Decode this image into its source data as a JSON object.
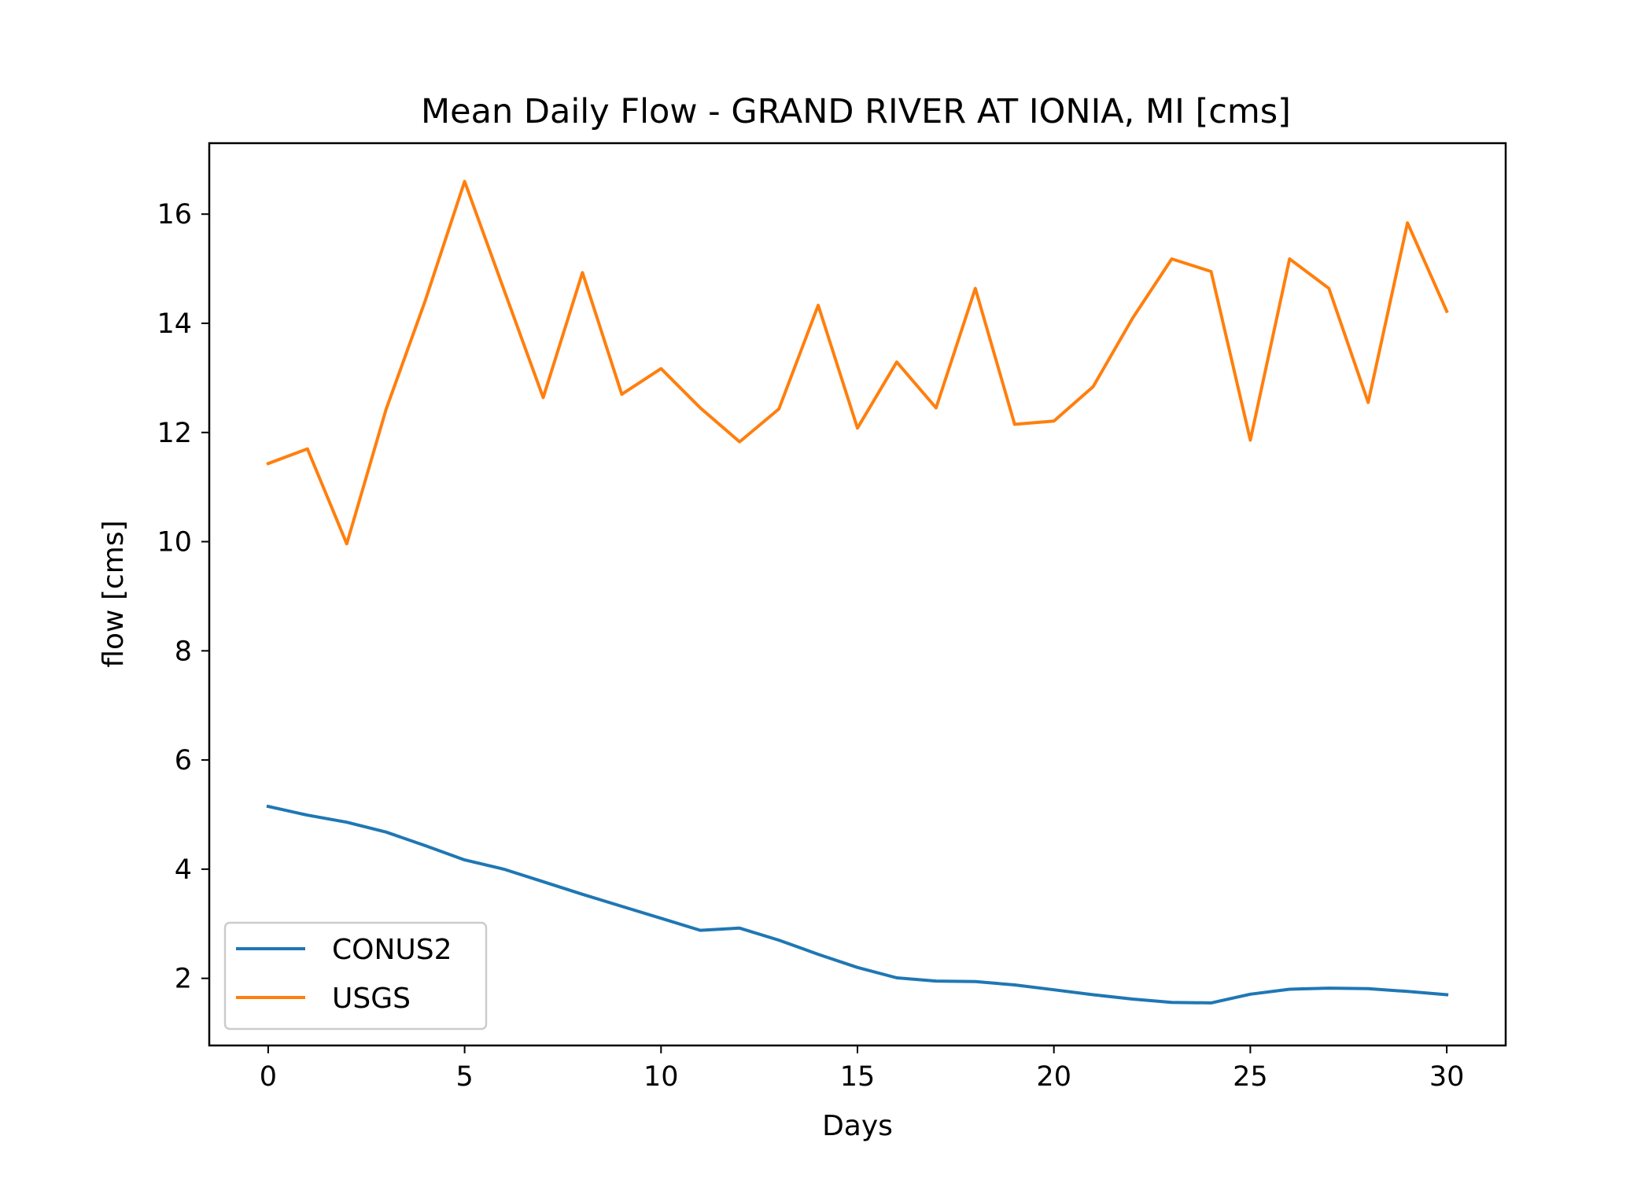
{
  "chart_data": {
    "type": "line",
    "title": "Mean Daily Flow - GRAND RIVER AT IONIA, MI [cms]",
    "xlabel": "Days",
    "ylabel": "flow [cms]",
    "xlim": [
      -1.5,
      31.5
    ],
    "ylim": [
      0.77,
      17.3
    ],
    "xticks": [
      0,
      5,
      10,
      15,
      20,
      25,
      30
    ],
    "yticks": [
      2,
      4,
      6,
      8,
      10,
      12,
      14,
      16
    ],
    "x": [
      0,
      1,
      2,
      3,
      4,
      5,
      6,
      7,
      8,
      9,
      10,
      11,
      12,
      13,
      14,
      15,
      16,
      17,
      18,
      19,
      20,
      21,
      22,
      23,
      24,
      25,
      26,
      27,
      28,
      29,
      30
    ],
    "series": [
      {
        "name": "CONUS2",
        "color": "#1f77b4",
        "values": [
          5.15,
          4.99,
          4.86,
          4.68,
          4.43,
          4.17,
          4.0,
          3.77,
          3.54,
          3.32,
          3.1,
          2.88,
          2.92,
          2.7,
          2.44,
          2.2,
          2.01,
          1.95,
          1.94,
          1.88,
          1.79,
          1.7,
          1.62,
          1.56,
          1.55,
          1.71,
          1.8,
          1.82,
          1.81,
          1.76,
          1.7
        ]
      },
      {
        "name": "USGS",
        "color": "#ff7f0e",
        "values": [
          11.43,
          11.7,
          9.96,
          12.42,
          14.42,
          16.6,
          14.62,
          12.64,
          14.93,
          12.7,
          13.17,
          12.45,
          11.83,
          12.43,
          14.33,
          12.08,
          13.29,
          12.45,
          14.64,
          12.15,
          12.21,
          12.84,
          14.09,
          15.18,
          14.95,
          11.86,
          15.18,
          14.64,
          12.55,
          15.84,
          14.22
        ]
      }
    ],
    "legend": {
      "position": "lower-left"
    },
    "grid": false
  }
}
